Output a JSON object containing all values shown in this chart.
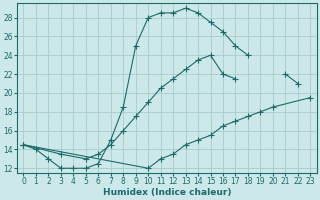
{
  "xlabel": "Humidex (Indice chaleur)",
  "background_color": "#cce8e8",
  "grid_color": "#aacccc",
  "line_color": "#1a6b6b",
  "xlim": [
    -0.5,
    23.5
  ],
  "ylim": [
    11.5,
    29.5
  ],
  "xticks": [
    0,
    1,
    2,
    3,
    4,
    5,
    6,
    7,
    8,
    9,
    10,
    11,
    12,
    13,
    14,
    15,
    16,
    17,
    18,
    19,
    20,
    21,
    22,
    23
  ],
  "yticks": [
    12,
    14,
    16,
    18,
    20,
    22,
    24,
    26,
    28
  ],
  "line1_x": [
    0,
    1,
    2,
    3,
    4,
    5,
    6,
    7,
    8,
    9,
    10,
    11,
    12,
    13,
    14,
    15,
    16,
    17,
    18,
    19,
    20,
    21,
    22
  ],
  "line1_y": [
    14.5,
    14.0,
    13.0,
    12.0,
    12.0,
    12.0,
    12.5,
    15.0,
    18.5,
    25.0,
    28.0,
    28.5,
    28.5,
    29.0,
    28.5,
    27.5,
    26.5,
    25.0,
    24.0,
    null,
    null,
    22.0,
    21.0
  ],
  "line2_x": [
    0,
    3,
    5,
    6,
    7,
    8,
    9,
    10,
    11,
    12,
    13,
    14,
    15,
    16,
    17,
    20,
    21,
    22,
    23
  ],
  "line2_y": [
    14.5,
    13.5,
    13.0,
    13.5,
    14.5,
    16.0,
    17.5,
    19.0,
    20.5,
    21.5,
    22.5,
    23.5,
    24.0,
    22.0,
    21.5,
    null,
    null,
    null,
    null
  ],
  "line3_x": [
    0,
    10,
    11,
    12,
    13,
    14,
    15,
    16,
    17,
    18,
    19,
    20,
    23
  ],
  "line3_y": [
    14.5,
    12.0,
    13.0,
    13.5,
    14.5,
    15.0,
    15.5,
    16.5,
    17.0,
    17.5,
    18.0,
    18.5,
    19.5
  ]
}
